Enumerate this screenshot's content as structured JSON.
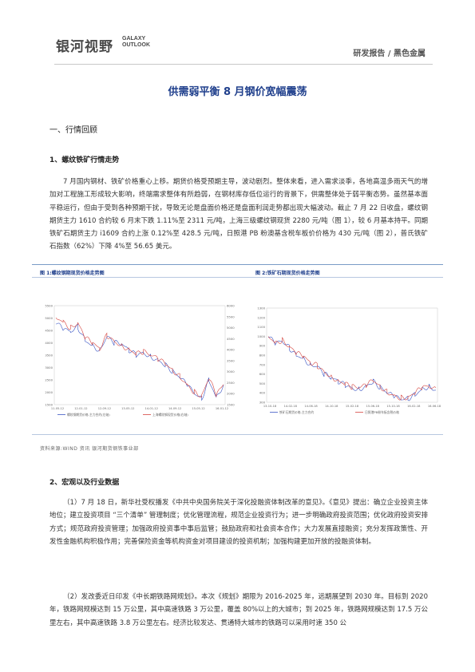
{
  "header": {
    "logo_cn": "银河视野",
    "logo_en_line1": "GALAXY",
    "logo_en_line2": "OUTLOOK",
    "report_type": "研发报告 / 黑色金属"
  },
  "title": "供需弱平衡  8 月钢价宽幅震荡",
  "section1": {
    "heading": "一、行情回顾",
    "sub_heading": "1、螺纹铁矿行情走势",
    "paragraph": "7 月国内钢材、铁矿价格重心上移。期货价格受预期主导，波动剧烈。整体来看，进入需求淡季，各地高温多雨天气的增加对工程施工形成较大影响，终端需求整体有所趋弱，在钢材库存低位运行的背景下，供需整体处于弱平衡态势。虽然基本面平稳运行，但由于受到各种预期干扰，导致无论是盘面价格还是盘面利润走势都出现大幅波动。截止 7 月 22 日收盘，螺纹钢期货主力 1610 合约较 6 月末下跌 1.11%至 2311 元/吨，上海三级螺纹钢现货 2280 元/吨（图 1），较 6 月基本持平。同期铁矿石期货主力 i1609 合约上涨 0.12%至 428.5 元/吨，日照港 PB 粉澳基含税车板价价格为 430 元/吨（图 2），普氏铁矿石指数（62%）下降 4%至 56.65 美元。"
  },
  "figures": {
    "fig1_caption": "图 1:螺纹钢期现货价格走势图",
    "fig2_caption": "图 2:铁矿石期现货价格走势图",
    "source": "资料来源:WIND 资讯    银河期货钢铁事业部"
  },
  "chart_data": [
    {
      "type": "line",
      "title": "",
      "y_left_ticks": [
        "5500",
        "5000",
        "4500",
        "4000",
        "3500",
        "3000",
        "2500",
        "2000",
        "1500"
      ],
      "y_right_ticks": [
        "6000",
        "5500",
        "5000",
        "4500",
        "4000",
        "3500",
        "3000",
        "2500",
        "2000",
        "1500"
      ],
      "x_ticks": [
        "11-05-12",
        "12-01-12",
        "12-09-12",
        "13-05-12",
        "14-01-12",
        "14-09-12",
        "15-05-12",
        "16-01-12"
      ],
      "ylim_left": [
        1500,
        5500
      ],
      "legend": [
        "螺纹钢期货价格-主力合约(左轴)",
        "上海螺纹钢现货价格(右轴)"
      ],
      "series": [
        {
          "name": "螺纹钢期货价格-主力合约(左轴)",
          "color": "#3b56c4",
          "values": [
            4800,
            4550,
            4450,
            4650,
            4100,
            3900,
            3700,
            4250,
            4000,
            3950,
            3700,
            3500,
            3600,
            3450,
            3300,
            3100,
            2850,
            2600,
            2300,
            1950,
            1750,
            2500,
            1800,
            2300
          ]
        },
        {
          "name": "上海螺纹钢现货价格(右轴)",
          "color": "#d6453f",
          "values": [
            5050,
            4850,
            4600,
            4800,
            4200,
            4000,
            3750,
            4300,
            4050,
            3900,
            3750,
            3550,
            3650,
            3500,
            3350,
            3150,
            2900,
            2650,
            2300,
            2000,
            1850,
            2550,
            1900,
            2300
          ]
        }
      ]
    },
    {
      "type": "line",
      "title": "",
      "y_left_ticks": [
        "1300",
        "1200",
        "1100",
        "1000",
        "900",
        "800",
        "700",
        "600",
        "500",
        "400",
        "300"
      ],
      "x_ticks": [
        "13-10-18",
        "14-02-18",
        "14-06-18",
        "14-10-18",
        "15-02-18",
        "15-06-18",
        "15-10-18",
        "16-02-18",
        "16-06-18"
      ],
      "ylim_left": [
        300,
        1300
      ],
      "legend": [
        "铁矿石期货价格-主力合约",
        "日照港PB粉车板含税价格"
      ],
      "series": [
        {
          "name": "铁矿石期货价格-主力合约",
          "color": "#3b56c4",
          "values": [
            1000,
            920,
            950,
            880,
            800,
            770,
            700,
            680,
            600,
            560,
            520,
            480,
            450,
            440,
            470,
            520,
            460,
            400,
            360,
            330,
            340,
            380,
            440,
            470,
            430
          ]
        },
        {
          "name": "日照港PB粉车板含税价格",
          "color": "#d6453f",
          "values": [
            1010,
            930,
            960,
            890,
            820,
            790,
            720,
            690,
            620,
            575,
            530,
            495,
            465,
            455,
            480,
            530,
            470,
            410,
            370,
            345,
            350,
            395,
            455,
            470,
            430
          ]
        }
      ]
    }
  ],
  "section2": {
    "heading": "2、宏观以及行业数据",
    "paragraph1": "（1）7 月 18 日，新华社受权播发《中共中央国务院关于深化投融资体制改革的意见》。《意见》提出：确立企业投资主体地位；建立投资项目 “三个清单” 管理制度；优化管理流程，规范企业投资行为；进一步明确政府投资范围；优化政府投资安排方式；规范政府投资管理；加强政府投资事中事后监管；鼓励政府和社会资本合作；大力发展直接融资；充分发挥政策性、开发性金融机构积极作用；完善保险资金等机构资金对项目建设的投资机制；加强构建更加开放的投融资体制。",
    "paragraph2": "（2）发改委近日印发《中长期铁路网规划》。本次《规划》期限为 2016-2025 年，远期展望到 2030 年。目标到 2020 年，铁路网规模达到 15 万公里，其中高速铁路 3 万公里，覆盖 80%以上的大城市；到 2025 年，铁路网规模达到 17.5 万公里左右，其中高速铁路 3.8 万公里左右。经济比较发达、贯通特大城市的铁路可以采用时速 350 公"
  }
}
